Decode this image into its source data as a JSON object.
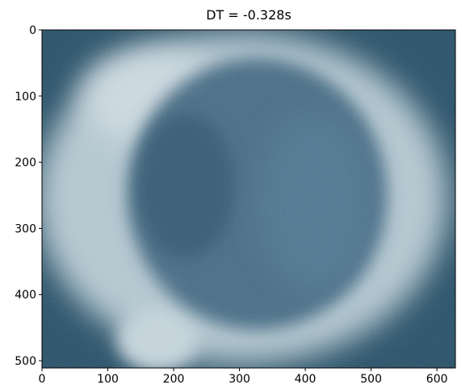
{
  "chart_data": {
    "type": "image",
    "title": "DT = -0.328s",
    "xlim": [
      0,
      628
    ],
    "ylim": [
      511,
      0
    ],
    "xticks": [
      0,
      100,
      200,
      300,
      400,
      500,
      600
    ],
    "yticks": [
      0,
      100,
      200,
      300,
      400,
      500
    ]
  }
}
